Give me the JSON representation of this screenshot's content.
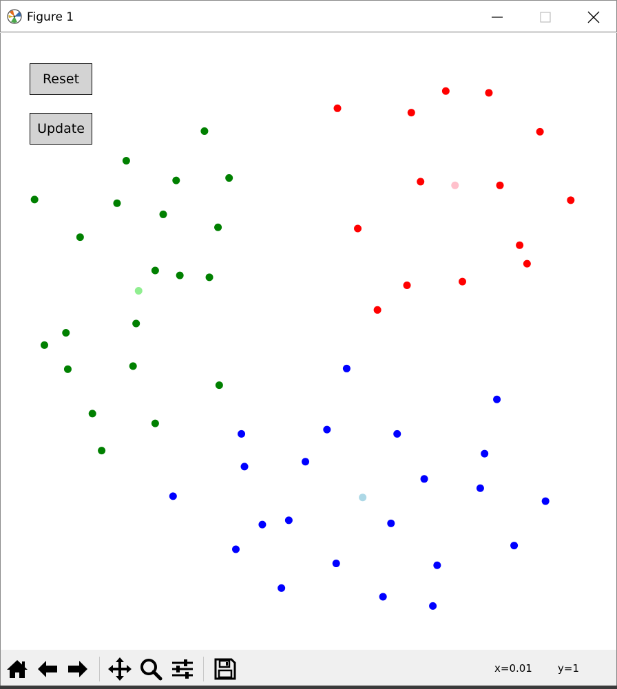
{
  "window": {
    "title": "Figure 1",
    "app_icon": "matplotlib-icon",
    "controls": [
      "minimize-icon",
      "maximize-icon",
      "close-icon"
    ]
  },
  "buttons": {
    "reset_label": "Reset",
    "update_label": "Update"
  },
  "toolbar": {
    "items": [
      "home-icon",
      "back-icon",
      "forward-icon",
      "pan-icon",
      "zoom-icon",
      "configure-subplots-icon",
      "save-icon"
    ],
    "x_readout": "x=0.01",
    "y_readout": "y=1"
  },
  "chart_data": {
    "type": "scatter",
    "title": "",
    "xlabel": "",
    "ylabel": "",
    "axes_visible": false,
    "grid": false,
    "xlim": [
      0,
      1
    ],
    "ylim": [
      0,
      1
    ],
    "colors": {
      "red": "#ff0000",
      "pink": "#ffc0cb",
      "green": "#008000",
      "lightgreen": "#90ee90",
      "blue": "#0000ff",
      "lightblue": "#add8e6"
    },
    "series": [
      {
        "color": "#ff0000",
        "points": [
          [
            0.547,
            0.878
          ],
          [
            0.667,
            0.871
          ],
          [
            0.723,
            0.906
          ],
          [
            0.793,
            0.903
          ],
          [
            0.876,
            0.84
          ],
          [
            0.926,
            0.729
          ],
          [
            0.811,
            0.753
          ],
          [
            0.682,
            0.759
          ],
          [
            0.58,
            0.683
          ],
          [
            0.843,
            0.656
          ],
          [
            0.855,
            0.626
          ],
          [
            0.75,
            0.597
          ],
          [
            0.66,
            0.591
          ],
          [
            0.612,
            0.551
          ]
        ]
      },
      {
        "color": "#ffc0cb",
        "points": [
          [
            0.738,
            0.753
          ]
        ]
      },
      {
        "color": "#008000",
        "points": [
          [
            0.331,
            0.841
          ],
          [
            0.204,
            0.793
          ],
          [
            0.285,
            0.761
          ],
          [
            0.371,
            0.765
          ],
          [
            0.055,
            0.73
          ],
          [
            0.189,
            0.724
          ],
          [
            0.264,
            0.706
          ],
          [
            0.353,
            0.685
          ],
          [
            0.129,
            0.669
          ],
          [
            0.251,
            0.615
          ],
          [
            0.291,
            0.607
          ],
          [
            0.339,
            0.604
          ],
          [
            0.22,
            0.529
          ],
          [
            0.106,
            0.514
          ],
          [
            0.071,
            0.494
          ],
          [
            0.215,
            0.46
          ],
          [
            0.109,
            0.455
          ],
          [
            0.355,
            0.429
          ],
          [
            0.149,
            0.383
          ],
          [
            0.251,
            0.367
          ],
          [
            0.164,
            0.323
          ]
        ]
      },
      {
        "color": "#90ee90",
        "points": [
          [
            0.224,
            0.582
          ]
        ]
      },
      {
        "color": "#0000ff",
        "points": [
          [
            0.562,
            0.456
          ],
          [
            0.806,
            0.406
          ],
          [
            0.53,
            0.357
          ],
          [
            0.391,
            0.35
          ],
          [
            0.644,
            0.35
          ],
          [
            0.786,
            0.318
          ],
          [
            0.495,
            0.305
          ],
          [
            0.396,
            0.297
          ],
          [
            0.688,
            0.277
          ],
          [
            0.779,
            0.262
          ],
          [
            0.28,
            0.249
          ],
          [
            0.885,
            0.241
          ],
          [
            0.468,
            0.21
          ],
          [
            0.425,
            0.203
          ],
          [
            0.634,
            0.205
          ],
          [
            0.834,
            0.169
          ],
          [
            0.382,
            0.163
          ],
          [
            0.545,
            0.14
          ],
          [
            0.709,
            0.137
          ],
          [
            0.456,
            0.1
          ],
          [
            0.621,
            0.086
          ],
          [
            0.702,
            0.071
          ]
        ]
      },
      {
        "color": "#add8e6",
        "points": [
          [
            0.588,
            0.247
          ]
        ]
      }
    ]
  }
}
